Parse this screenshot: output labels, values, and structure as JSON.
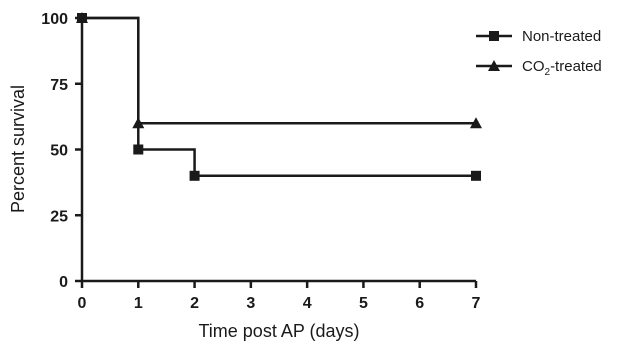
{
  "chart_data": {
    "type": "line",
    "subtype": "step",
    "title": "",
    "xlabel": "Time post AP (days)",
    "ylabel": "Percent survival",
    "xlim": [
      0,
      7
    ],
    "ylim": [
      0,
      100
    ],
    "xticks": [
      "0",
      "1",
      "2",
      "3",
      "4",
      "5",
      "6",
      "7"
    ],
    "yticks": [
      "0",
      "25",
      "50",
      "75",
      "100"
    ],
    "grid": false,
    "legend_position": "top-right",
    "series": [
      {
        "name": "Non-treated",
        "marker": "square",
        "color": "#1a1a1a",
        "points": [
          {
            "x": 0,
            "y": 100
          },
          {
            "x": 1,
            "y": 50
          },
          {
            "x": 2,
            "y": 40
          },
          {
            "x": 7,
            "y": 40
          }
        ]
      },
      {
        "name": "CO2-treated",
        "name_main": "CO",
        "name_sub": "2",
        "name_tail": "-treated",
        "marker": "triangle",
        "color": "#1a1a1a",
        "points": [
          {
            "x": 0,
            "y": 100
          },
          {
            "x": 1,
            "y": 60
          },
          {
            "x": 7,
            "y": 60
          }
        ]
      }
    ]
  }
}
